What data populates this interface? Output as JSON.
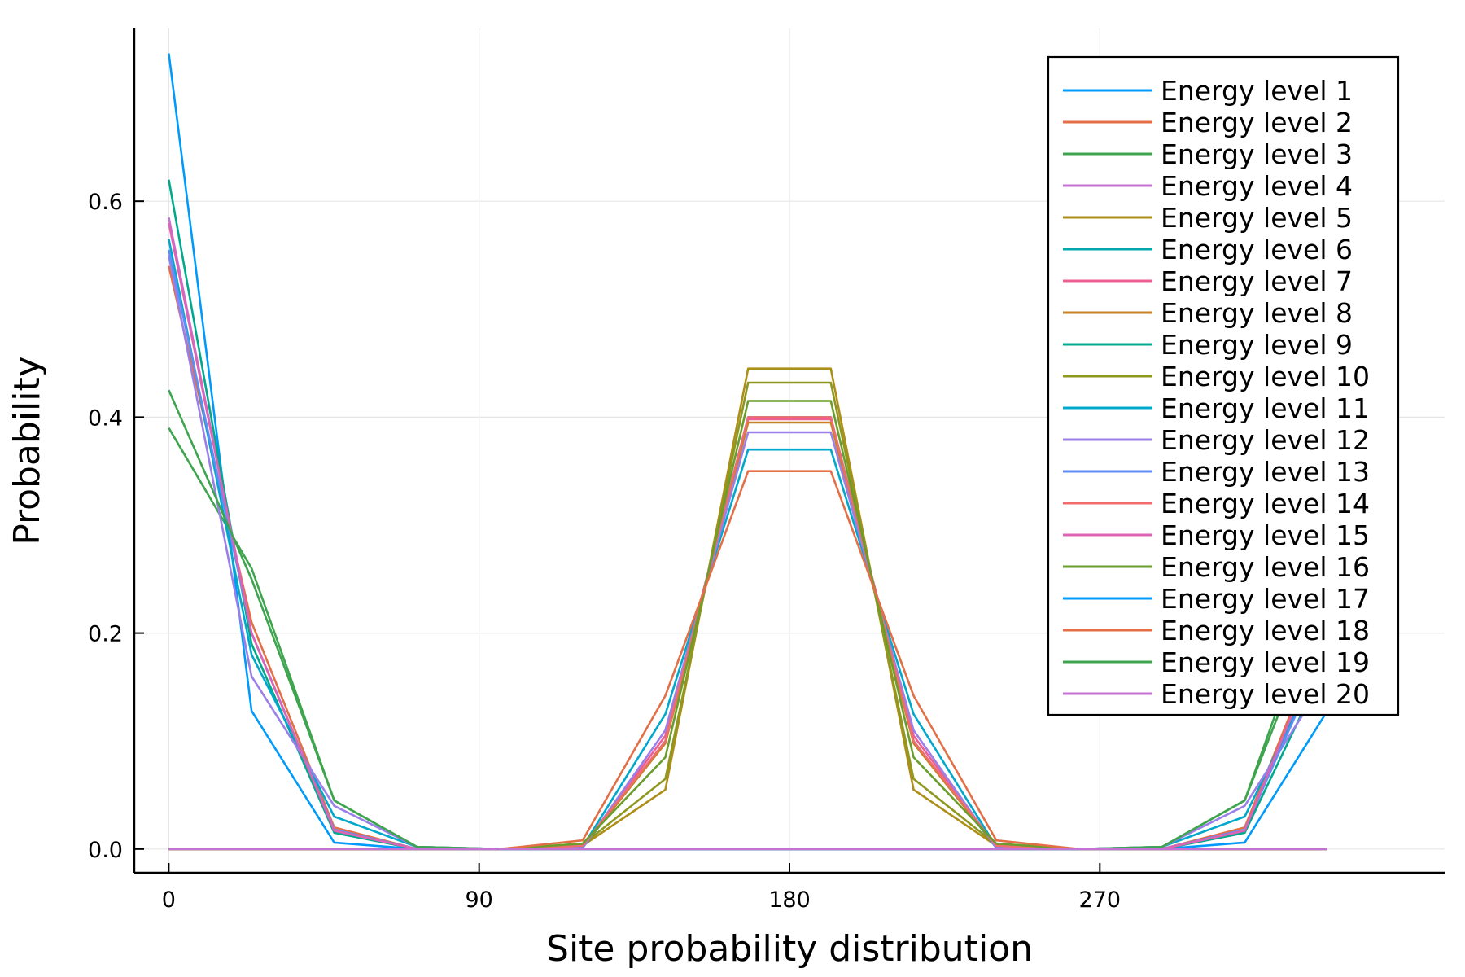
{
  "chart_data": {
    "type": "line",
    "title": "",
    "xlabel": "Site probability distribution",
    "ylabel": "Probability",
    "xlim": [
      -10,
      370
    ],
    "ylim": [
      -0.022,
      0.76
    ],
    "xticks": [
      0,
      90,
      180,
      270
    ],
    "xtick_labels": [
      "0",
      "90",
      "180",
      "270"
    ],
    "yticks": [
      0,
      0.2,
      0.4,
      0.6
    ],
    "ytick_labels": [
      "0.0",
      "0.2",
      "0.4",
      "0.6"
    ],
    "grid": true,
    "legend_position": "top-right",
    "x": [
      0,
      24,
      48,
      72,
      96,
      120,
      144,
      168,
      192,
      216,
      240,
      264,
      288,
      312,
      336
    ],
    "series": [
      {
        "name": "Energy level 1",
        "color": "#009AFA",
        "values": [
          0.737,
          0.128,
          0.006,
          0.0,
          0.0,
          0.0,
          0.0,
          0.0,
          0.0,
          0.0,
          0.0,
          0.0,
          0.0,
          0.006,
          0.128
        ]
      },
      {
        "name": "Energy level 2",
        "color": "#E36F47",
        "values": [
          0.54,
          0.21,
          0.02,
          0.0,
          0.0,
          0.0,
          0.0,
          0.0,
          0.0,
          0.0,
          0.0,
          0.0,
          0.0,
          0.02,
          0.21
        ]
      },
      {
        "name": "Energy level 3",
        "color": "#3EA44E",
        "values": [
          0.39,
          0.26,
          0.045,
          0.002,
          0.0,
          0.0,
          0.0,
          0.0,
          0.0,
          0.0,
          0.0,
          0.0,
          0.002,
          0.045,
          0.26
        ]
      },
      {
        "name": "Energy level 4",
        "color": "#C371D2",
        "values": [
          0.585,
          0.2,
          0.016,
          0.0,
          0.0,
          0.0,
          0.0,
          0.0,
          0.0,
          0.0,
          0.0,
          0.0,
          0.0,
          0.016,
          0.2
        ]
      },
      {
        "name": "Energy level 5",
        "color": "#AC8E18",
        "values": [
          0.0,
          0.0,
          0.0,
          0.0,
          0.0,
          0.003,
          0.055,
          0.445,
          0.445,
          0.055,
          0.003,
          0.0,
          0.0,
          0.0,
          0.0
        ]
      },
      {
        "name": "Energy level 6",
        "color": "#00A9AD",
        "values": [
          0.0,
          0.0,
          0.0,
          0.0,
          0.0,
          0.001,
          0.1,
          0.4,
          0.4,
          0.1,
          0.001,
          0.0,
          0.0,
          0.0,
          0.0
        ]
      },
      {
        "name": "Energy level 7",
        "color": "#ED5E93",
        "values": [
          0.0,
          0.0,
          0.0,
          0.0,
          0.0,
          0.002,
          0.105,
          0.398,
          0.398,
          0.105,
          0.002,
          0.0,
          0.0,
          0.0,
          0.0
        ]
      },
      {
        "name": "Energy level 8",
        "color": "#C68225",
        "values": [
          0.0,
          0.0,
          0.0,
          0.0,
          0.0,
          0.002,
          0.098,
          0.395,
          0.395,
          0.098,
          0.002,
          0.0,
          0.0,
          0.0,
          0.0
        ]
      },
      {
        "name": "Energy level 9",
        "color": "#00A98D",
        "values": [
          0.62,
          0.19,
          0.015,
          0.0,
          0.0,
          0.0,
          0.0,
          0.0,
          0.0,
          0.0,
          0.0,
          0.0,
          0.0,
          0.015,
          0.175
        ]
      },
      {
        "name": "Energy level 10",
        "color": "#8E971E",
        "values": [
          0.0,
          0.0,
          0.0,
          0.0,
          0.0,
          0.004,
          0.065,
          0.432,
          0.432,
          0.065,
          0.004,
          0.0,
          0.0,
          0.0,
          0.0
        ]
      },
      {
        "name": "Energy level 11",
        "color": "#00A8CB",
        "values": [
          0.565,
          0.18,
          0.03,
          0.002,
          0.0,
          0.002,
          0.125,
          0.37,
          0.37,
          0.125,
          0.002,
          0.0,
          0.002,
          0.03,
          0.185
        ]
      },
      {
        "name": "Energy level 12",
        "color": "#9B7FE9",
        "values": [
          0.55,
          0.16,
          0.04,
          0.002,
          0.0,
          0.001,
          0.11,
          0.386,
          0.386,
          0.11,
          0.001,
          0.0,
          0.002,
          0.04,
          0.16
        ]
      },
      {
        "name": "Energy level 13",
        "color": "#618DF6",
        "values": [
          0.555,
          0.2,
          0.018,
          0.0,
          0.0,
          0.0,
          0.0,
          0.0,
          0.0,
          0.0,
          0.0,
          0.0,
          0.0,
          0.018,
          0.19
        ]
      },
      {
        "name": "Energy level 14",
        "color": "#F16C6F",
        "values": [
          0.0,
          0.0,
          0.0,
          0.0,
          0.0,
          0.003,
          0.1,
          0.4,
          0.4,
          0.1,
          0.003,
          0.0,
          0.0,
          0.0,
          0.0
        ]
      },
      {
        "name": "Energy level 15",
        "color": "#DD64B5",
        "values": [
          0.58,
          0.2,
          0.017,
          0.0,
          0.0,
          0.0,
          0.0,
          0.0,
          0.0,
          0.0,
          0.0,
          0.0,
          0.0,
          0.017,
          0.205
        ]
      },
      {
        "name": "Energy level 16",
        "color": "#6B9D2C",
        "values": [
          0.0,
          0.0,
          0.0,
          0.0,
          0.0,
          0.005,
          0.085,
          0.415,
          0.415,
          0.085,
          0.005,
          0.0,
          0.0,
          0.0,
          0.0
        ]
      },
      {
        "name": "Energy level 17",
        "color": "#009AFA",
        "values": [
          0.0,
          0.0,
          0.0,
          0.0,
          0.0,
          0.0,
          0.0,
          0.0,
          0.0,
          0.0,
          0.0,
          0.0,
          0.0,
          0.0,
          0.0
        ]
      },
      {
        "name": "Energy level 18",
        "color": "#E36F47",
        "values": [
          0.0,
          0.0,
          0.0,
          0.0,
          0.0,
          0.008,
          0.142,
          0.35,
          0.35,
          0.142,
          0.008,
          0.0,
          0.0,
          0.0,
          0.0
        ]
      },
      {
        "name": "Energy level 19",
        "color": "#3EA44E",
        "values": [
          0.425,
          0.25,
          0.045,
          0.002,
          0.0,
          0.0,
          0.0,
          0.0,
          0.0,
          0.0,
          0.0,
          0.0,
          0.002,
          0.045,
          0.24
        ]
      },
      {
        "name": "Energy level 20",
        "color": "#C371D2",
        "values": [
          0.0,
          0.0,
          0.0,
          0.0,
          0.0,
          0.0,
          0.0,
          0.0,
          0.0,
          0.0,
          0.0,
          0.0,
          0.0,
          0.0,
          0.0
        ]
      }
    ]
  }
}
